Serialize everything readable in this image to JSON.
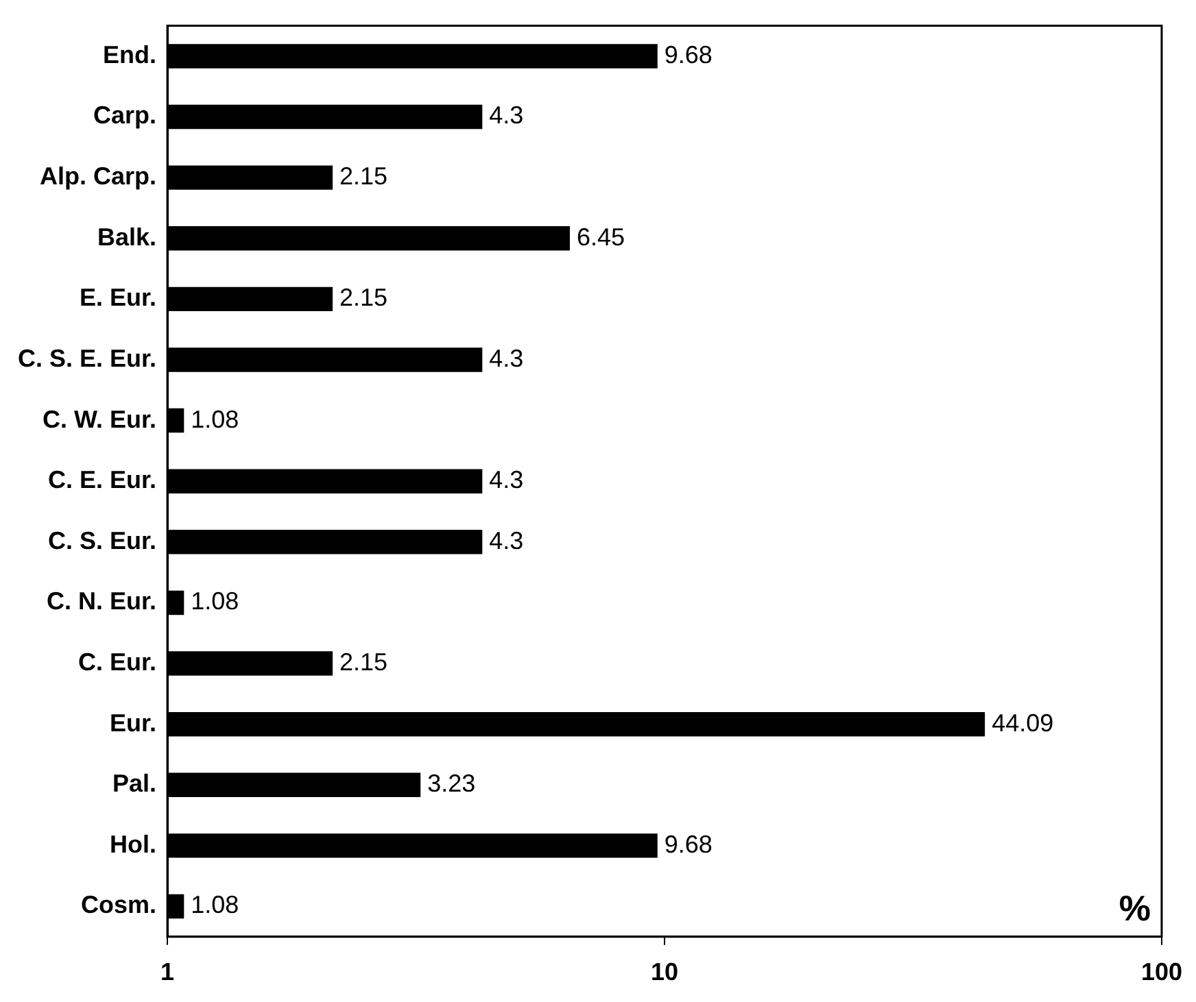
{
  "chart_data": {
    "type": "bar",
    "orientation": "horizontal",
    "xlabel": "%",
    "categories": [
      "End.",
      "Carp.",
      "Alp. Carp.",
      "Balk.",
      "E. Eur.",
      "C. S. E. Eur.",
      "C. W. Eur.",
      "C. E. Eur.",
      "C. S. Eur.",
      "C. N. Eur.",
      "C. Eur.",
      "Eur.",
      "Pal.",
      "Hol.",
      "Cosm."
    ],
    "values": [
      9.68,
      4.3,
      2.15,
      6.45,
      2.15,
      4.3,
      1.08,
      4.3,
      4.3,
      1.08,
      2.15,
      44.09,
      3.23,
      9.68,
      1.08
    ],
    "color": "#000000",
    "log": "x",
    "xlim": [
      1,
      100
    ],
    "xticks": [
      1,
      10,
      100
    ],
    "grid": false,
    "legend": false,
    "data_labels": true
  }
}
